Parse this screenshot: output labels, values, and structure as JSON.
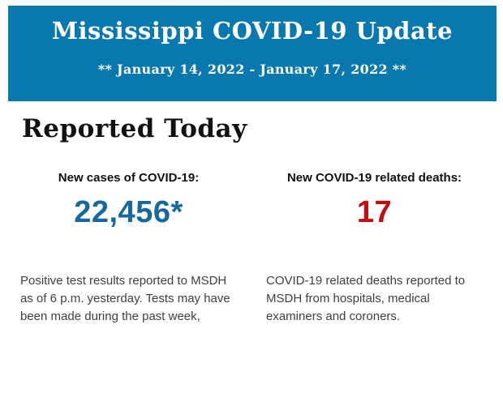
{
  "header": {
    "background": "#0878AE",
    "text_color": "#ffffff",
    "title": "Mississippi COVID-19 Update",
    "subtitle": "** January 14, 2022 - January 17, 2022 **"
  },
  "section": {
    "heading": "Reported Today"
  },
  "stats": {
    "cases": {
      "label": "New cases of COVID-19:",
      "value": "22,456*",
      "value_color": "#16689D",
      "description": "Positive test results reported to MSDH as of 6 p.m. yesterday. Tests may have been made during the past week,"
    },
    "deaths": {
      "label": "New COVID-19 related deaths:",
      "value": "17",
      "value_color": "#C00D0D",
      "description": "COVID-19 related deaths reported to MSDH from hospitals, medical examiners and coroners."
    }
  }
}
